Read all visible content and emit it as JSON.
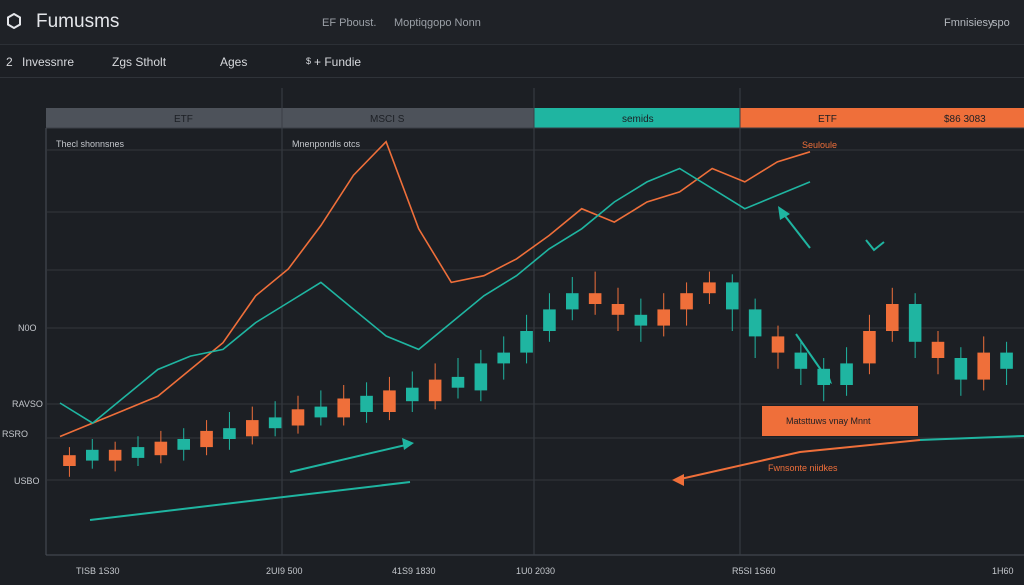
{
  "app": {
    "title": "Fumusms",
    "center_1": "EF Pboust.",
    "center_2": "Moptiqgopo Nonn",
    "right_1": "Fmnisiesy",
    "right_2": "spo"
  },
  "tabs": {
    "prefix": "2",
    "items": [
      "Invessnre",
      "Zgs Stholt",
      "Ages",
      "+ Fundie"
    ],
    "marker": "$"
  },
  "chart_data": {
    "type": "candlestick",
    "panel_headers": [
      {
        "label": "ETF",
        "color": "#4d525a"
      },
      {
        "label": "MSCI S",
        "color": "#4d525a"
      },
      {
        "label": "semids",
        "color": "#1fb5a1"
      },
      {
        "label": "ETF",
        "color": "#ef6f3a"
      },
      {
        "label": "$86 3083",
        "color": "#ef6f3a"
      }
    ],
    "panel_labels": [
      "Thecl shonnsnes",
      "Mnenpondis otcs"
    ],
    "annotations": {
      "top_orange": "Seuloule",
      "callout": "Matsttuws vnay Mnnt",
      "lower_right": "Fwnsonte niidkes"
    },
    "y_tick_labels": [
      "N0O",
      "RAVSO",
      "RSRO",
      "USBO"
    ],
    "x_tick_labels": [
      "TISB 1S30",
      "2UI9 500",
      "41S9 1830",
      "1U0 2030",
      "R5SI 1S60",
      "1H60"
    ],
    "series": [
      {
        "name": "orange-line",
        "color": "#ef6f3a",
        "values": [
          0.1,
          0.14,
          0.18,
          0.22,
          0.3,
          0.38,
          0.52,
          0.6,
          0.73,
          0.88,
          0.98,
          0.72,
          0.56,
          0.58,
          0.63,
          0.7,
          0.78,
          0.74,
          0.8,
          0.83,
          0.9,
          0.86,
          0.92,
          0.95
        ]
      },
      {
        "name": "teal-line",
        "color": "#1fb5a1",
        "values": [
          0.2,
          0.14,
          0.22,
          0.3,
          0.34,
          0.36,
          0.44,
          0.5,
          0.56,
          0.48,
          0.4,
          0.36,
          0.44,
          0.52,
          0.58,
          0.66,
          0.72,
          0.8,
          0.86,
          0.9,
          0.84,
          0.78,
          0.82,
          0.86
        ]
      }
    ],
    "candles": [
      {
        "o": 0.2,
        "c": 0.24,
        "h": 0.27,
        "l": 0.16,
        "color": "#ef6f3a"
      },
      {
        "o": 0.26,
        "c": 0.22,
        "h": 0.3,
        "l": 0.19,
        "color": "#1fb5a1"
      },
      {
        "o": 0.22,
        "c": 0.26,
        "h": 0.29,
        "l": 0.18,
        "color": "#ef6f3a"
      },
      {
        "o": 0.27,
        "c": 0.23,
        "h": 0.31,
        "l": 0.2,
        "color": "#1fb5a1"
      },
      {
        "o": 0.24,
        "c": 0.29,
        "h": 0.33,
        "l": 0.21,
        "color": "#ef6f3a"
      },
      {
        "o": 0.3,
        "c": 0.26,
        "h": 0.34,
        "l": 0.22,
        "color": "#1fb5a1"
      },
      {
        "o": 0.27,
        "c": 0.33,
        "h": 0.37,
        "l": 0.24,
        "color": "#ef6f3a"
      },
      {
        "o": 0.34,
        "c": 0.3,
        "h": 0.4,
        "l": 0.26,
        "color": "#1fb5a1"
      },
      {
        "o": 0.31,
        "c": 0.37,
        "h": 0.42,
        "l": 0.28,
        "color": "#ef6f3a"
      },
      {
        "o": 0.38,
        "c": 0.34,
        "h": 0.44,
        "l": 0.31,
        "color": "#1fb5a1"
      },
      {
        "o": 0.35,
        "c": 0.41,
        "h": 0.46,
        "l": 0.32,
        "color": "#ef6f3a"
      },
      {
        "o": 0.42,
        "c": 0.38,
        "h": 0.48,
        "l": 0.35,
        "color": "#1fb5a1"
      },
      {
        "o": 0.38,
        "c": 0.45,
        "h": 0.5,
        "l": 0.35,
        "color": "#ef6f3a"
      },
      {
        "o": 0.46,
        "c": 0.4,
        "h": 0.51,
        "l": 0.36,
        "color": "#1fb5a1"
      },
      {
        "o": 0.4,
        "c": 0.48,
        "h": 0.53,
        "l": 0.37,
        "color": "#ef6f3a"
      },
      {
        "o": 0.49,
        "c": 0.44,
        "h": 0.55,
        "l": 0.4,
        "color": "#1fb5a1"
      },
      {
        "o": 0.44,
        "c": 0.52,
        "h": 0.58,
        "l": 0.41,
        "color": "#ef6f3a"
      },
      {
        "o": 0.53,
        "c": 0.49,
        "h": 0.6,
        "l": 0.45,
        "color": "#1fb5a1"
      },
      {
        "o": 0.48,
        "c": 0.58,
        "h": 0.63,
        "l": 0.44,
        "color": "#1fb5a1"
      },
      {
        "o": 0.58,
        "c": 0.62,
        "h": 0.68,
        "l": 0.52,
        "color": "#1fb5a1"
      },
      {
        "o": 0.62,
        "c": 0.7,
        "h": 0.76,
        "l": 0.58,
        "color": "#1fb5a1"
      },
      {
        "o": 0.7,
        "c": 0.78,
        "h": 0.84,
        "l": 0.66,
        "color": "#1fb5a1"
      },
      {
        "o": 0.78,
        "c": 0.84,
        "h": 0.9,
        "l": 0.74,
        "color": "#1fb5a1"
      },
      {
        "o": 0.84,
        "c": 0.8,
        "h": 0.92,
        "l": 0.76,
        "color": "#ef6f3a"
      },
      {
        "o": 0.8,
        "c": 0.76,
        "h": 0.86,
        "l": 0.7,
        "color": "#ef6f3a"
      },
      {
        "o": 0.76,
        "c": 0.72,
        "h": 0.82,
        "l": 0.66,
        "color": "#1fb5a1"
      },
      {
        "o": 0.72,
        "c": 0.78,
        "h": 0.84,
        "l": 0.68,
        "color": "#ef6f3a"
      },
      {
        "o": 0.78,
        "c": 0.84,
        "h": 0.88,
        "l": 0.72,
        "color": "#ef6f3a"
      },
      {
        "o": 0.84,
        "c": 0.88,
        "h": 0.92,
        "l": 0.8,
        "color": "#ef6f3a"
      },
      {
        "o": 0.88,
        "c": 0.78,
        "h": 0.91,
        "l": 0.7,
        "color": "#1fb5a1"
      },
      {
        "o": 0.78,
        "c": 0.68,
        "h": 0.82,
        "l": 0.6,
        "color": "#1fb5a1"
      },
      {
        "o": 0.68,
        "c": 0.62,
        "h": 0.72,
        "l": 0.56,
        "color": "#ef6f3a"
      },
      {
        "o": 0.62,
        "c": 0.56,
        "h": 0.66,
        "l": 0.5,
        "color": "#1fb5a1"
      },
      {
        "o": 0.56,
        "c": 0.5,
        "h": 0.6,
        "l": 0.44,
        "color": "#1fb5a1"
      },
      {
        "o": 0.5,
        "c": 0.58,
        "h": 0.64,
        "l": 0.46,
        "color": "#1fb5a1"
      },
      {
        "o": 0.58,
        "c": 0.7,
        "h": 0.76,
        "l": 0.54,
        "color": "#ef6f3a"
      },
      {
        "o": 0.7,
        "c": 0.8,
        "h": 0.86,
        "l": 0.66,
        "color": "#ef6f3a"
      },
      {
        "o": 0.8,
        "c": 0.66,
        "h": 0.84,
        "l": 0.6,
        "color": "#1fb5a1"
      },
      {
        "o": 0.66,
        "c": 0.6,
        "h": 0.7,
        "l": 0.54,
        "color": "#ef6f3a"
      },
      {
        "o": 0.6,
        "c": 0.52,
        "h": 0.64,
        "l": 0.46,
        "color": "#1fb5a1"
      },
      {
        "o": 0.52,
        "c": 0.62,
        "h": 0.68,
        "l": 0.48,
        "color": "#ef6f3a"
      },
      {
        "o": 0.62,
        "c": 0.56,
        "h": 0.66,
        "l": 0.5,
        "color": "#1fb5a1"
      }
    ]
  }
}
